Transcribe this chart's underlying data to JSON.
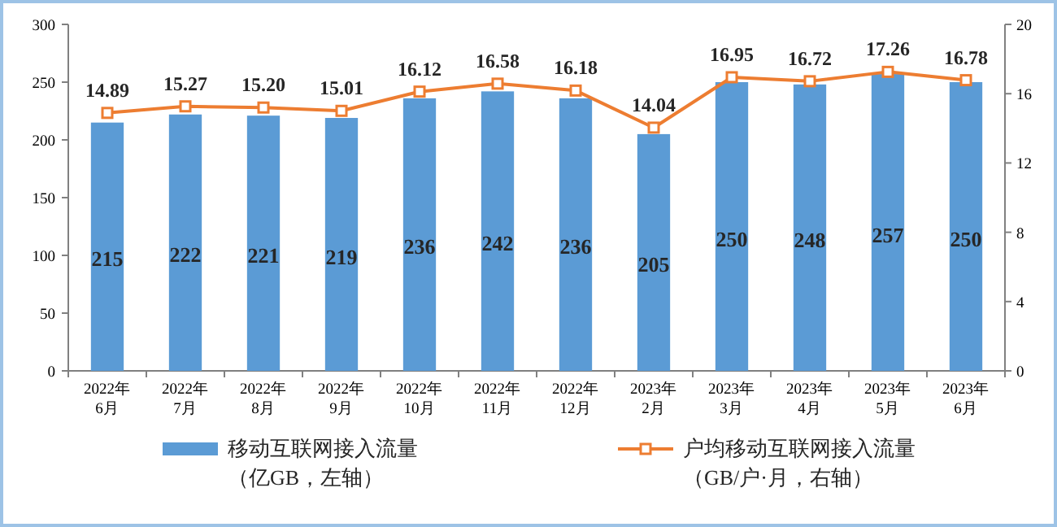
{
  "chart_data": {
    "type": "bar",
    "categories": [
      "2022年\n6月",
      "2022年\n7月",
      "2022年\n8月",
      "2022年\n9月",
      "2022年\n10月",
      "2022年\n11月",
      "2022年\n12月",
      "2023年\n2月",
      "2023年\n3月",
      "2023年\n4月",
      "2023年\n5月",
      "2023年\n6月"
    ],
    "series": [
      {
        "name": "移动互联网接入流量（亿GB，左轴）",
        "color": "#5b9bd5",
        "values": [
          215,
          222,
          221,
          219,
          236,
          242,
          236,
          205,
          250,
          248,
          257,
          250
        ]
      },
      {
        "name": "户均移动互联网接入流量（GB/户·月，右轴）",
        "type": "line",
        "axis": "y2",
        "color": "#ed7d31",
        "marker": "square",
        "values": [
          14.89,
          15.27,
          15.2,
          15.01,
          16.12,
          16.58,
          16.18,
          14.04,
          16.95,
          16.72,
          17.26,
          16.78
        ],
        "value_labels": [
          "14.89",
          "15.27",
          "15.20",
          "15.01",
          "16.12",
          "16.58",
          "16.18",
          "14.04",
          "16.95",
          "16.72",
          "17.26",
          "16.78"
        ]
      }
    ],
    "data_labels": true,
    "ylim": [
      0,
      300
    ],
    "yticks": [
      0,
      50,
      100,
      150,
      200,
      250,
      300
    ],
    "y2lim": [
      0,
      20
    ],
    "y2ticks": [
      0,
      4,
      8,
      12,
      16,
      20
    ],
    "grid": false,
    "legend": "bottom"
  }
}
